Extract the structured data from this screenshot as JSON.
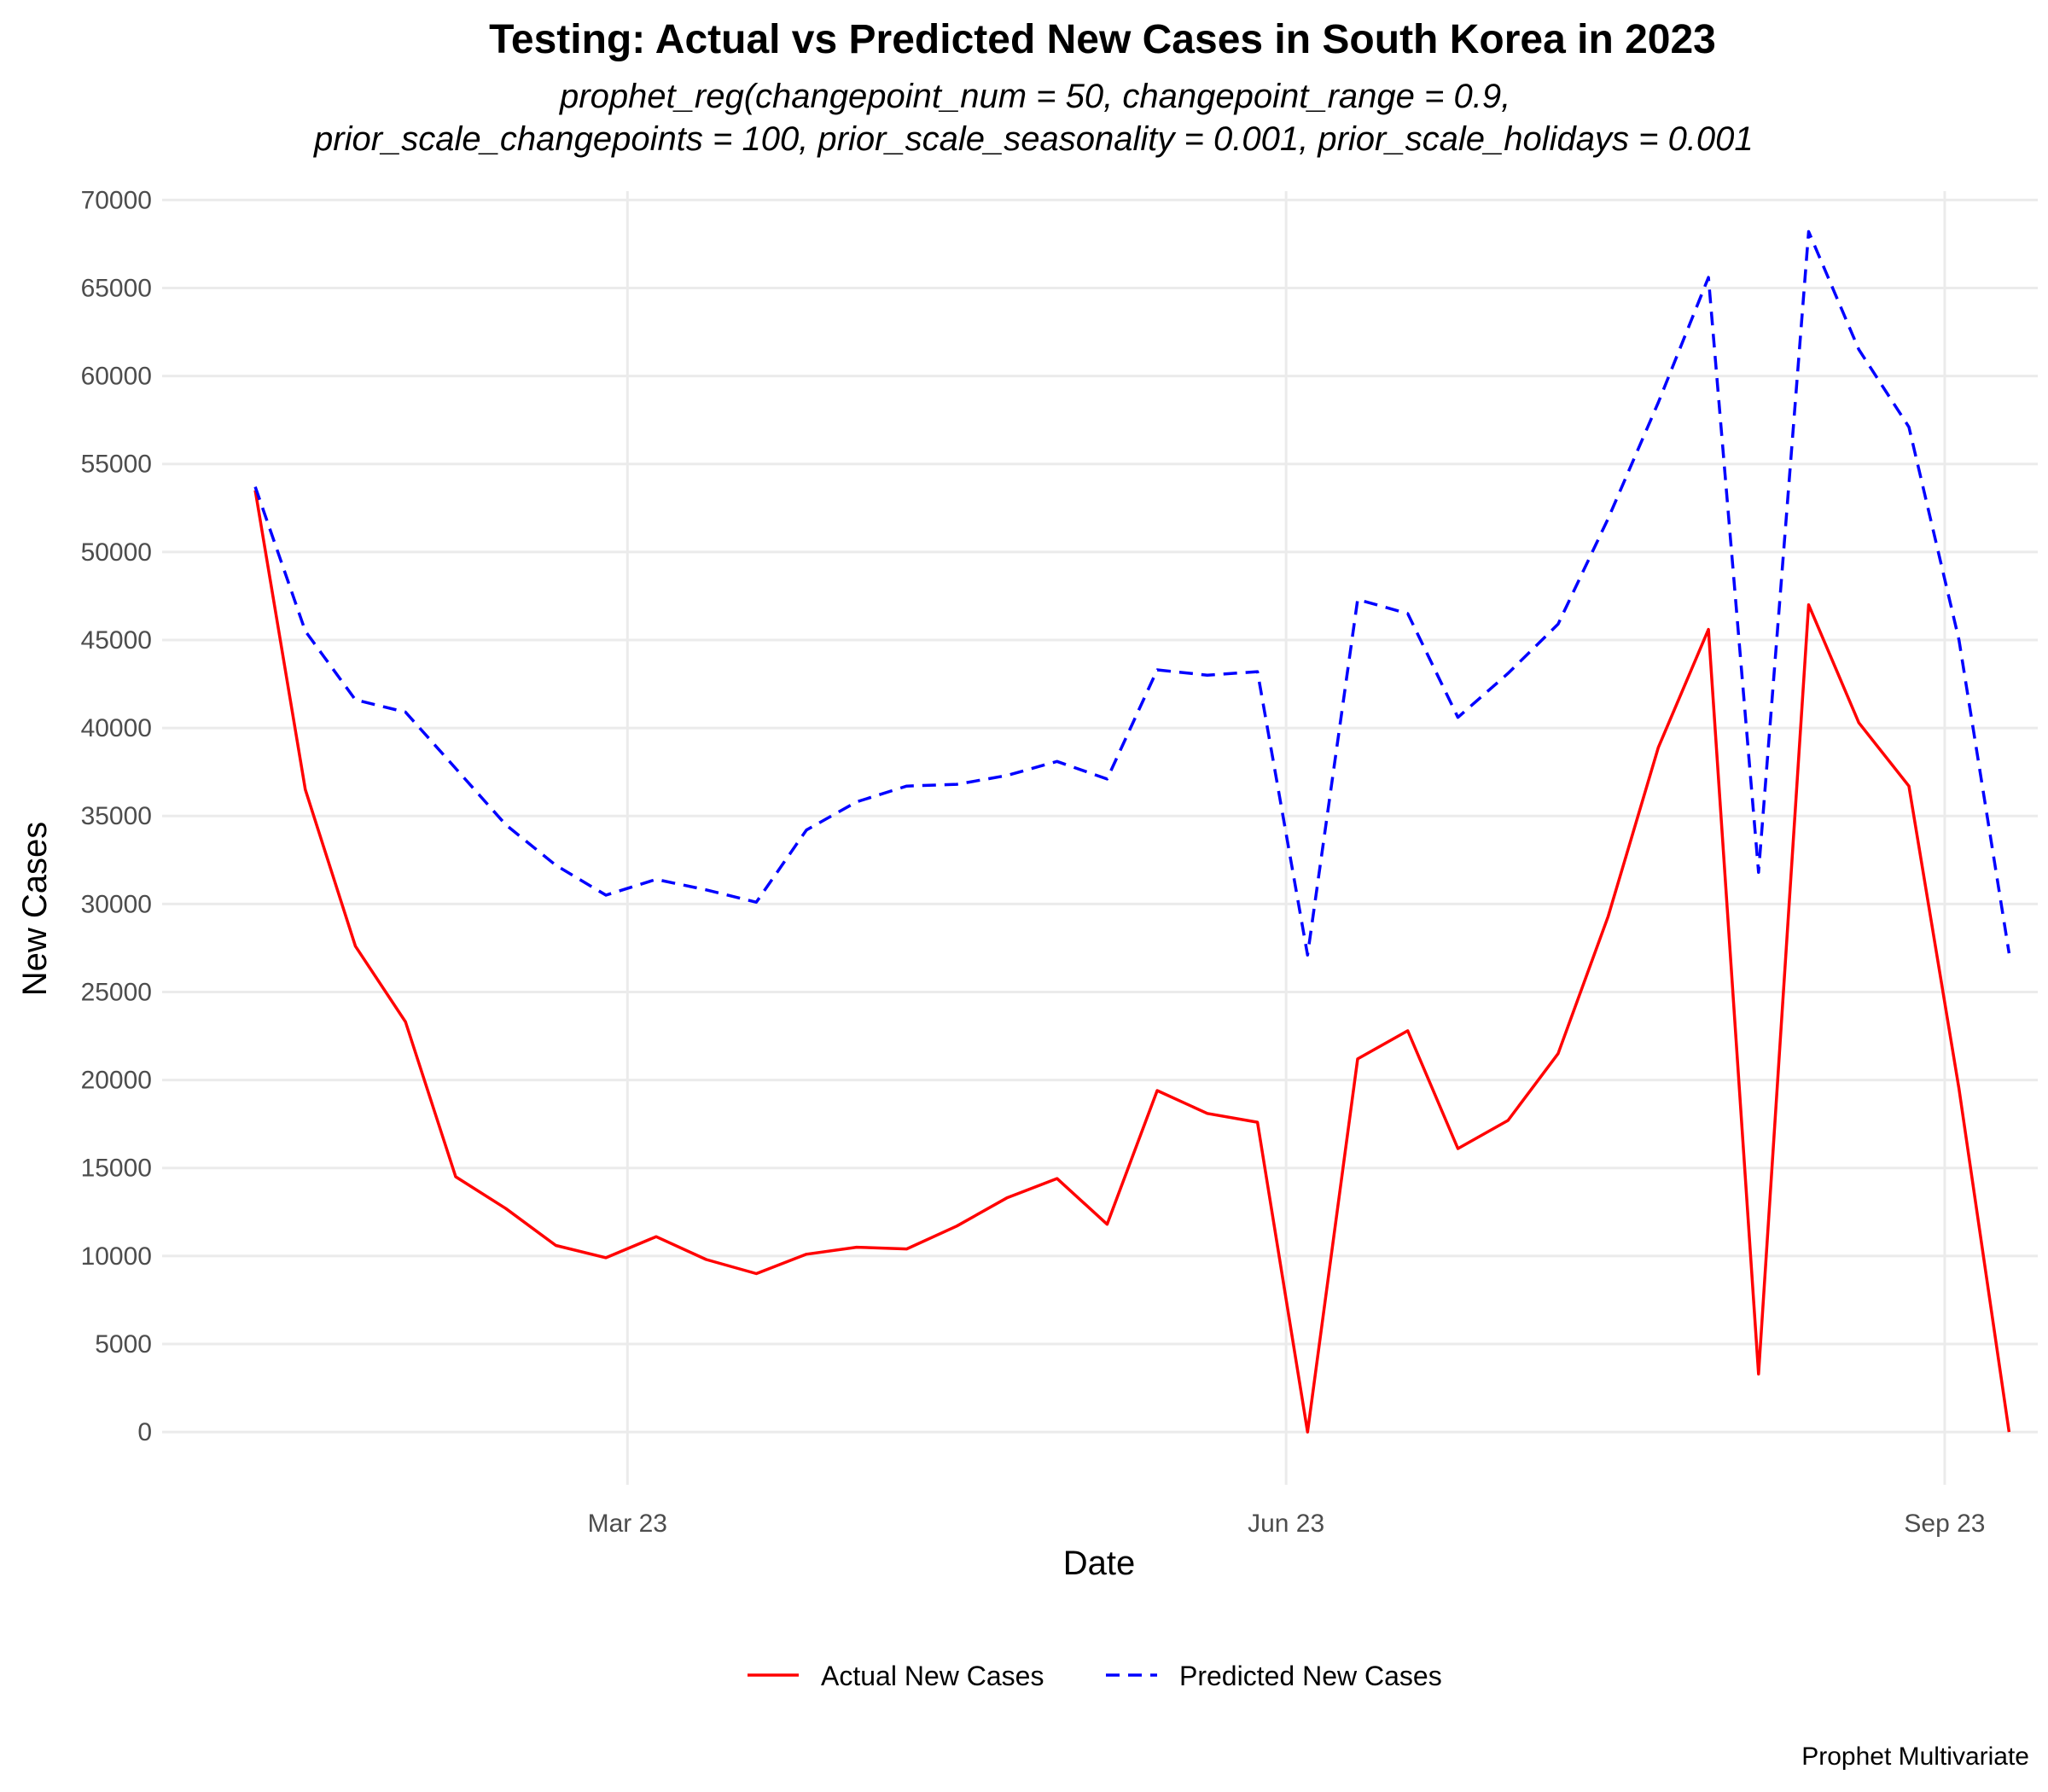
{
  "chart_data": {
    "type": "line",
    "title": "Testing: Actual vs Predicted New Cases in South Korea in 2023",
    "subtitle_lines": [
      "prophet_reg(changepoint_num = 50, changepoint_range = 0.9,",
      "prior_scale_changepoints = 100, prior_scale_seasonality = 0.001, prior_scale_holidays = 0.001"
    ],
    "xlabel": "Date",
    "ylabel": "New Cases",
    "caption": "Prophet Multivariate",
    "x_ticks": [
      {
        "date": "2023-03-01",
        "label": "Mar 23"
      },
      {
        "date": "2023-06-01",
        "label": "Jun 23"
      },
      {
        "date": "2023-09-01",
        "label": "Sep 23"
      }
    ],
    "xlim": [
      "2022-12-26",
      "2023-09-14"
    ],
    "ylim": [
      -3000,
      70500
    ],
    "y_ticks": [
      0,
      5000,
      10000,
      15000,
      20000,
      25000,
      30000,
      35000,
      40000,
      45000,
      50000,
      55000,
      60000,
      65000,
      70000
    ],
    "grid": true,
    "legend_position": "bottom",
    "x": [
      "2023-01-08",
      "2023-01-15",
      "2023-01-22",
      "2023-01-29",
      "2023-02-05",
      "2023-02-12",
      "2023-02-19",
      "2023-02-26",
      "2023-03-05",
      "2023-03-12",
      "2023-03-19",
      "2023-03-26",
      "2023-04-02",
      "2023-04-09",
      "2023-04-16",
      "2023-04-23",
      "2023-04-30",
      "2023-05-07",
      "2023-05-14",
      "2023-05-21",
      "2023-05-28",
      "2023-06-04",
      "2023-06-11",
      "2023-06-18",
      "2023-06-25",
      "2023-07-02",
      "2023-07-09",
      "2023-07-16",
      "2023-07-23",
      "2023-07-30",
      "2023-08-06",
      "2023-08-13",
      "2023-08-20",
      "2023-08-27",
      "2023-09-03",
      "2023-09-10"
    ],
    "series": [
      {
        "name": "Actual New Cases",
        "color": "#ff0000",
        "dash": "solid",
        "values": [
          53500,
          36500,
          27600,
          23300,
          14500,
          12700,
          10600,
          9900,
          11100,
          9800,
          9000,
          10100,
          10500,
          10400,
          11700,
          13300,
          14400,
          11800,
          19400,
          18100,
          17600,
          0,
          21200,
          22800,
          16100,
          17700,
          21500,
          29300,
          38900,
          45600,
          3300,
          47000,
          40300,
          36700,
          19500,
          0
        ]
      },
      {
        "name": "Predicted New Cases",
        "color": "#0000ff",
        "dash": "dashed",
        "values": [
          53700,
          45500,
          41600,
          40900,
          37700,
          34500,
          32200,
          30500,
          31400,
          30800,
          30100,
          34200,
          35800,
          36700,
          36800,
          37300,
          38100,
          37100,
          43300,
          43000,
          43200,
          27100,
          47300,
          46500,
          40600,
          43100,
          45900,
          51900,
          58500,
          65600,
          31800,
          68200,
          61500,
          57100,
          45000,
          27200
        ]
      }
    ]
  }
}
